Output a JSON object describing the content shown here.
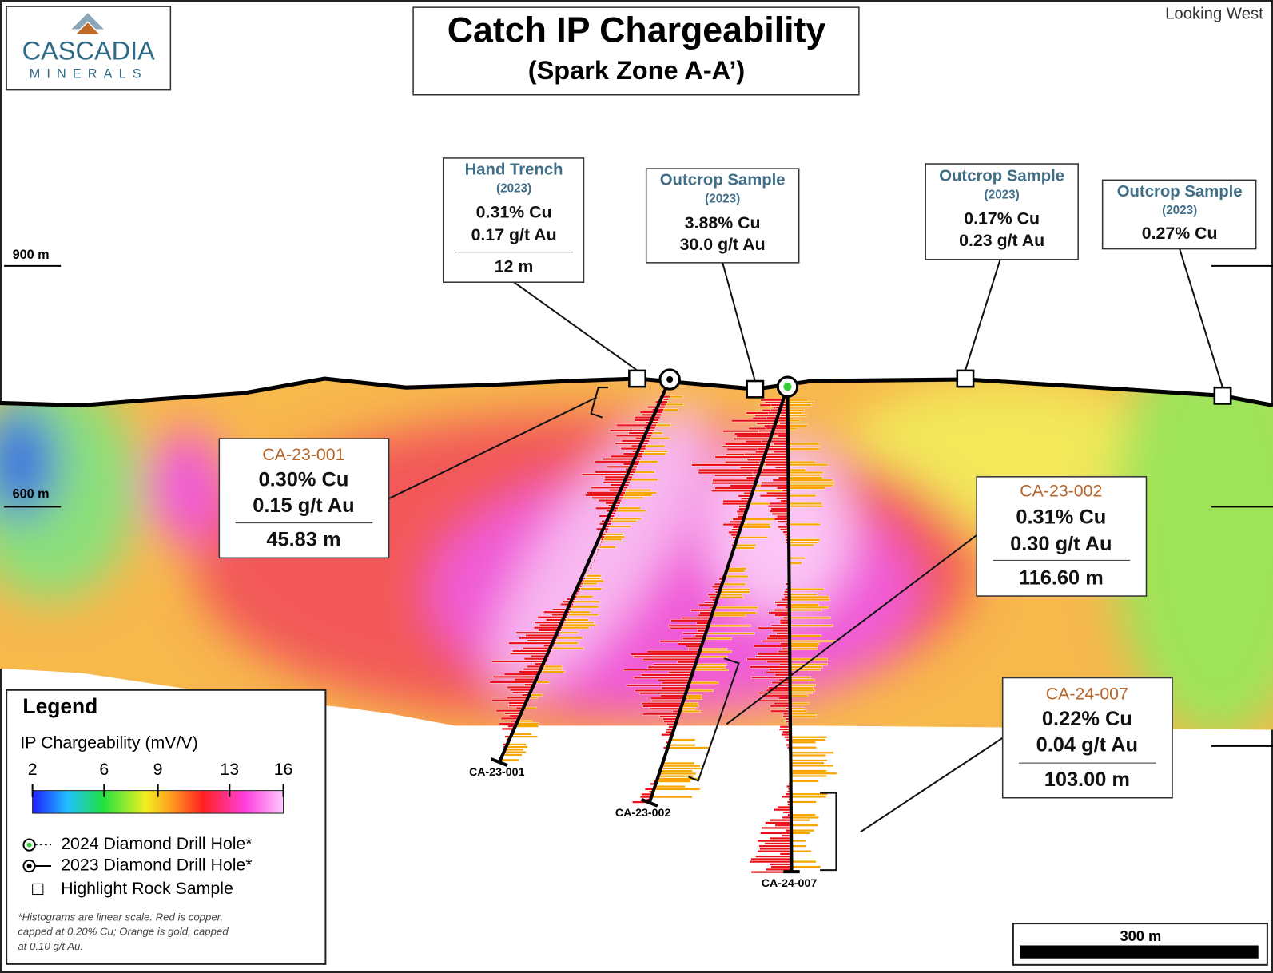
{
  "header": {
    "logo_name": "CASCADIA",
    "logo_sub": "MINERALS",
    "title": "Catch IP Chargeability",
    "subtitle": "(Spark Zone A-A’)",
    "view": "Looking West"
  },
  "elevations": [
    "900 m",
    "600 m"
  ],
  "samples": [
    {
      "type": "Hand Trench",
      "year": "(2023)",
      "lines": [
        "0.31% Cu",
        "0.17 g/t Au"
      ],
      "width": "12 m"
    },
    {
      "type": "Outcrop Sample",
      "year": "(2023)",
      "lines": [
        "3.88% Cu",
        "30.0 g/t Au"
      ]
    },
    {
      "type": "Outcrop Sample",
      "year": "(2023)",
      "lines": [
        "0.17% Cu",
        "0.23 g/t Au"
      ]
    },
    {
      "type": "Outcrop Sample",
      "year": "(2023)",
      "lines": [
        "0.27% Cu"
      ]
    }
  ],
  "intercepts": [
    {
      "hole": "CA-23-001",
      "lines": [
        "0.30% Cu",
        "0.15 g/t Au"
      ],
      "length": "45.83 m"
    },
    {
      "hole": "CA-23-002",
      "lines": [
        "0.31% Cu",
        "0.30 g/t Au"
      ],
      "length": "116.60 m"
    },
    {
      "hole": "CA-24-007",
      "lines": [
        "0.22% Cu",
        "0.04 g/t Au"
      ],
      "length": "103.00 m"
    }
  ],
  "holes": [
    "CA-23-001",
    "CA-23-002",
    "CA-24-007"
  ],
  "legend": {
    "title": "Legend",
    "scale_title": "IP Chargeability (mV/V)",
    "range": [
      2,
      16
    ],
    "ticks": [
      2,
      6,
      9,
      13,
      16
    ],
    "items": [
      "2024 Diamond Drill Hole*",
      "2023 Diamond Drill Hole*",
      "Highlight Rock Sample"
    ],
    "note": [
      "*Histograms are linear scale. Red is copper,",
      "capped at 0.20% Cu; Orange is gold, capped",
      "at 0.10 g/t Au."
    ]
  },
  "scale_bar": "300 m"
}
